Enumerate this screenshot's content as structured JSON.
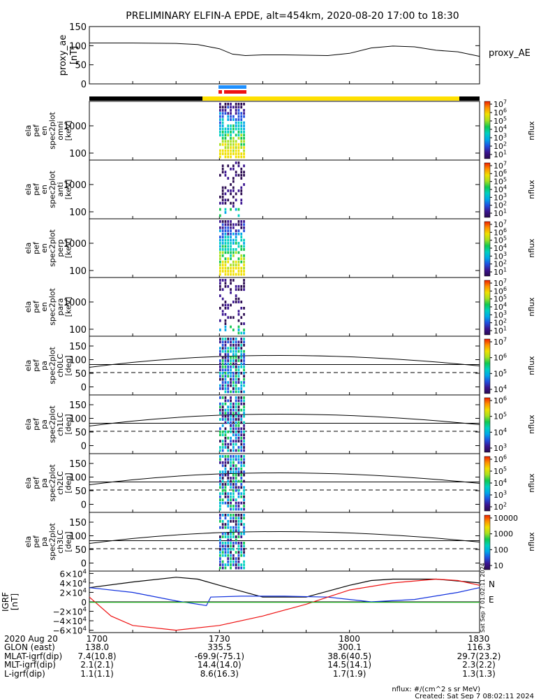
{
  "title": "PRELIMINARY ELFIN-A EPDE, alt=454km, 2020-08-20 17:00 to 18:30",
  "colors": {
    "ae_line": "#000000",
    "bar_black": "#000000",
    "bar_yellow": "#ffe000",
    "bar_blue": "#1e90ff",
    "bar_red": "#ee1111",
    "bx": "#ee1111",
    "by": "#1030dd",
    "bz": "#000000",
    "bmag": "#22bb22"
  },
  "chart_data": [
    {
      "type": "line",
      "name": "proxy_ae",
      "ylabel": "proxy_ae [nT]",
      "yticks": [
        "150",
        "100",
        "50",
        "0"
      ],
      "ylim": [
        0,
        150
      ],
      "legend": "proxy_AE",
      "x_minutes": [
        0,
        10,
        20,
        25,
        30,
        33,
        36,
        40,
        45,
        50,
        55,
        60,
        65,
        70,
        75,
        80,
        85,
        90
      ],
      "values": [
        107,
        107,
        106,
        103,
        92,
        78,
        74,
        76,
        76,
        75,
        74,
        80,
        94,
        99,
        97,
        88,
        84,
        72
      ]
    },
    {
      "type": "bar",
      "name": "coverage_bars",
      "description_labels": [],
      "segments": [
        "black",
        "yellow",
        "black"
      ]
    },
    {
      "type": "heatmap",
      "name": "spectrograms",
      "panels": [
        {
          "ylabel_lines": [
            "ela",
            "pef",
            "en",
            "spec2plot",
            "omni",
            "[keV]"
          ],
          "yticks": [
            "1000",
            "100"
          ],
          "cbar_ticks": [
            "10^7",
            "10^6",
            "10^5",
            "10^4",
            "10^3",
            "10^2",
            "10^1"
          ],
          "cbar_label": "nflux"
        },
        {
          "ylabel_lines": [
            "ela",
            "pef",
            "en",
            "spec2plot",
            "anti",
            "[keV]"
          ],
          "yticks": [
            "1000",
            "100"
          ],
          "cbar_ticks": [
            "10^7",
            "10^6",
            "10^5",
            "10^4",
            "10^3",
            "10^2",
            "10^1"
          ],
          "cbar_label": "nflux"
        },
        {
          "ylabel_lines": [
            "ela",
            "pef",
            "en",
            "spec2plot",
            "perp",
            "[keV]"
          ],
          "yticks": [
            "1000",
            "100"
          ],
          "cbar_ticks": [
            "10^7",
            "10^6",
            "10^5",
            "10^4",
            "10^3",
            "10^2",
            "10^1"
          ],
          "cbar_label": "nflux"
        },
        {
          "ylabel_lines": [
            "ela",
            "pef",
            "en",
            "spec2plot",
            "para",
            "[keV]"
          ],
          "yticks": [
            "1000",
            "100"
          ],
          "cbar_ticks": [
            "10^7",
            "10^6",
            "10^5",
            "10^4",
            "10^3",
            "10^2",
            "10^1"
          ],
          "cbar_label": "nflux"
        },
        {
          "ylabel_lines": [
            "ela",
            "pef",
            "pa",
            "spec2plot",
            "ch0LC",
            "[deg]"
          ],
          "yticks": [
            "150",
            "100",
            "50",
            "0"
          ],
          "cbar_ticks": [
            "10^7",
            "10^6",
            "10^5",
            "10^4"
          ],
          "cbar_label": "nflux"
        },
        {
          "ylabel_lines": [
            "ela",
            "pef",
            "pa",
            "spec2plot",
            "ch1LC",
            "[deg]"
          ],
          "yticks": [
            "150",
            "100",
            "50",
            "0"
          ],
          "cbar_ticks": [
            "10^6",
            "10^5",
            "10^4",
            "10^3"
          ],
          "cbar_label": "nflux"
        },
        {
          "ylabel_lines": [
            "ela",
            "pef",
            "pa",
            "spec2plot",
            "ch2LC",
            "[deg]"
          ],
          "yticks": [
            "150",
            "100",
            "50",
            "0"
          ],
          "cbar_ticks": [
            "10^6",
            "10^5",
            "10^4",
            "10^3",
            "10^2"
          ],
          "cbar_label": "nflux"
        },
        {
          "ylabel_lines": [
            "ela",
            "pef",
            "pa",
            "spec2plot",
            "ch3LC",
            "[deg]"
          ],
          "yticks": [
            "150",
            "100",
            "50",
            "0"
          ],
          "cbar_ticks": [
            "10000",
            "1000",
            "100",
            "10"
          ],
          "cbar_label": "nflux"
        }
      ]
    },
    {
      "type": "line",
      "name": "b_field_gei",
      "ylabel": "IGRF [nT]",
      "yticks": [
        "6×10^4",
        "4×10^4",
        "2×10^4",
        "0",
        "−2×10^4",
        "−4×10^4",
        "−6×10^4"
      ],
      "ylim": [
        -65000,
        65000
      ],
      "legend": [
        "N",
        "E"
      ],
      "side_text": "Sat Sep  7 01:02:11 2024",
      "series": [
        {
          "name": "black",
          "x_minutes": [
            0,
            10,
            20,
            25,
            30,
            40,
            50,
            60,
            65,
            70,
            75,
            80,
            90
          ],
          "values": [
            30000,
            42000,
            52000,
            48000,
            35000,
            10000,
            10000,
            35000,
            45000,
            48000,
            48000,
            48000,
            40000
          ]
        },
        {
          "name": "blue",
          "x_minutes": [
            0,
            10,
            20,
            27,
            28,
            35,
            45,
            55,
            60,
            65,
            75,
            85,
            90
          ],
          "values": [
            30000,
            20000,
            2000,
            -8000,
            10000,
            12000,
            12000,
            10000,
            5000,
            0,
            5000,
            20000,
            30000
          ]
        },
        {
          "name": "red",
          "x_minutes": [
            0,
            5,
            10,
            20,
            30,
            40,
            50,
            55,
            60,
            70,
            80,
            85,
            90
          ],
          "values": [
            10000,
            -30000,
            -50000,
            -60000,
            -50000,
            -30000,
            -5000,
            10000,
            25000,
            40000,
            48000,
            45000,
            35000
          ]
        },
        {
          "name": "green",
          "x_minutes": [
            0,
            10,
            20,
            30,
            40,
            50,
            60,
            70,
            80,
            90
          ],
          "values": [
            -1000,
            -1000,
            -1000,
            -1000,
            -1000,
            -1000,
            -1000,
            -1000,
            -1000,
            -1000
          ]
        }
      ]
    }
  ],
  "time_axis": {
    "row_labels": [
      "2020 Aug 20",
      "GLON (east)",
      "MLAT-igrf(dip)",
      "MLT-igrf(dip)",
      "L-igrf(dip)"
    ],
    "columns": [
      {
        "minute": 0,
        "values": [
          "1700",
          "138.0",
          "7.4(10.8)",
          "2.1(2.1)",
          "1.1(1.1)"
        ]
      },
      {
        "minute": 30,
        "values": [
          "1730",
          "335.5",
          "-69.9(-75.1)",
          "14.4(14.0)",
          "8.6(16.3)"
        ]
      },
      {
        "minute": 60,
        "values": [
          "1800",
          "300.1",
          "38.6(40.5)",
          "14.5(14.1)",
          "1.7(1.9)"
        ]
      },
      {
        "minute": 90,
        "values": [
          "1830",
          "116.3",
          "29.7(23.2)",
          "2.3(2.2)",
          "1.3(1.3)"
        ]
      }
    ]
  },
  "footer": {
    "units": "nflux: #/(cm^2 s sr MeV)",
    "created": "Created: Sat Sep  7 08:02:11 2024"
  }
}
